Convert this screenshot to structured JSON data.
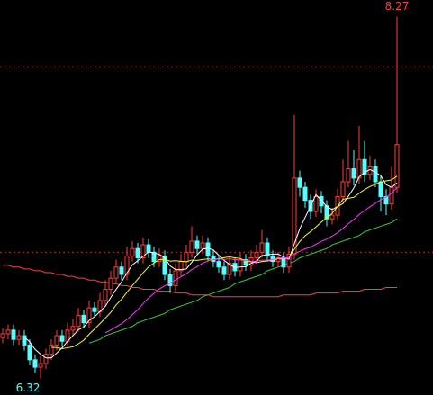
{
  "chart_data": {
    "type": "candlestick",
    "ylim": [
      6.23,
      8.36
    ],
    "ygrid": [
      7,
      8
    ],
    "grid_color": "#c0302a",
    "up_color": "#ff3b3b",
    "down_color": "#54ffff",
    "background": "#000000",
    "open": [
      6.54,
      6.56,
      6.58,
      6.53,
      6.55,
      6.5,
      6.42,
      6.38,
      6.4,
      6.45,
      6.5,
      6.55,
      6.52,
      6.58,
      6.6,
      6.66,
      6.62,
      6.7,
      6.68,
      6.74,
      6.8,
      6.86,
      6.92,
      6.88,
      6.98,
      7.02,
      6.97,
      7.04,
      7.0,
      6.95,
      6.98,
      6.88,
      6.82,
      6.9,
      6.95,
      7.0,
      7.06,
      7.02,
      7.05,
      6.98,
      6.95,
      6.92,
      6.88,
      6.94,
      6.9,
      6.96,
      6.93,
      6.97,
      7.0,
      7.05,
      6.98,
      6.95,
      6.97,
      6.92,
      6.99,
      7.4,
      7.35,
      7.28,
      7.22,
      7.3,
      7.25,
      7.18,
      7.2,
      7.3,
      7.38,
      7.45,
      7.4,
      7.5,
      7.42,
      7.46,
      7.38,
      7.3,
      7.26,
      7.35
    ],
    "high": [
      6.59,
      6.61,
      6.61,
      6.58,
      6.58,
      6.53,
      6.45,
      6.44,
      6.48,
      6.53,
      6.58,
      6.58,
      6.62,
      6.64,
      6.7,
      6.69,
      6.74,
      6.73,
      6.78,
      6.85,
      6.9,
      6.96,
      6.95,
      7.03,
      7.06,
      7.05,
      7.08,
      7.07,
      7.03,
      7.02,
      7.01,
      6.91,
      6.94,
      6.99,
      7.04,
      7.14,
      7.09,
      7.09,
      7.08,
      7.01,
      6.98,
      6.95,
      6.98,
      6.97,
      7.0,
      6.99,
      7.01,
      7.04,
      7.12,
      7.08,
      7.01,
      7.0,
      7.0,
      7.03,
      7.74,
      7.44,
      7.38,
      7.31,
      7.34,
      7.33,
      7.28,
      7.24,
      7.34,
      7.5,
      7.6,
      7.55,
      7.68,
      7.6,
      7.52,
      7.5,
      7.41,
      7.34,
      7.46,
      8.27
    ],
    "low": [
      6.51,
      6.53,
      6.5,
      6.5,
      6.47,
      6.39,
      6.35,
      6.32,
      6.37,
      6.42,
      6.47,
      6.49,
      6.49,
      6.55,
      6.57,
      6.59,
      6.59,
      6.65,
      6.65,
      6.71,
      6.77,
      6.83,
      6.85,
      6.85,
      6.95,
      6.94,
      6.94,
      6.97,
      6.92,
      6.92,
      6.85,
      6.78,
      6.79,
      6.87,
      6.92,
      6.97,
      6.99,
      6.99,
      6.95,
      6.92,
      6.89,
      6.85,
      6.85,
      6.87,
      6.87,
      6.9,
      6.9,
      6.94,
      6.97,
      6.95,
      6.92,
      6.92,
      6.89,
      6.89,
      6.96,
      7.3,
      7.24,
      7.18,
      7.19,
      7.21,
      7.14,
      7.15,
      7.17,
      7.27,
      7.35,
      7.36,
      7.37,
      7.38,
      7.39,
      7.35,
      7.22,
      7.2,
      7.23,
      7.32
    ],
    "close": [
      6.56,
      6.58,
      6.53,
      6.55,
      6.5,
      6.42,
      6.38,
      6.4,
      6.45,
      6.5,
      6.55,
      6.52,
      6.58,
      6.6,
      6.66,
      6.62,
      6.7,
      6.68,
      6.74,
      6.8,
      6.86,
      6.92,
      6.88,
      6.98,
      7.02,
      6.97,
      7.04,
      7.0,
      6.95,
      6.98,
      6.88,
      6.82,
      6.9,
      6.95,
      7.0,
      7.06,
      7.02,
      7.05,
      6.98,
      6.95,
      6.92,
      6.88,
      6.94,
      6.9,
      6.96,
      6.93,
      6.97,
      7.0,
      7.05,
      6.98,
      6.95,
      6.97,
      6.92,
      6.99,
      7.4,
      7.35,
      7.28,
      7.22,
      7.3,
      7.25,
      7.18,
      7.2,
      7.3,
      7.38,
      7.45,
      7.4,
      7.5,
      7.42,
      7.46,
      7.38,
      7.3,
      7.26,
      7.35,
      7.58
    ],
    "averages": [
      {
        "color": "#ffffff",
        "period": 5
      },
      {
        "color": "#ffff00",
        "period": 10
      },
      {
        "color": "#ff33ff",
        "period": 20
      }
    ],
    "lines": [
      {
        "color": "#33cc33",
        "values": [
          null,
          null,
          null,
          null,
          null,
          null,
          null,
          null,
          null,
          null,
          null,
          null,
          null,
          null,
          null,
          null,
          6.51,
          6.52,
          6.53,
          6.55,
          6.56,
          6.57,
          6.58,
          6.59,
          6.6,
          6.62,
          6.63,
          6.64,
          6.65,
          6.66,
          6.67,
          6.69,
          6.7,
          6.71,
          6.72,
          6.73,
          6.74,
          6.76,
          6.77,
          6.78,
          6.79,
          6.8,
          6.81,
          6.83,
          6.84,
          6.85,
          6.86,
          6.87,
          6.88,
          6.9,
          6.91,
          6.92,
          6.93,
          6.94,
          6.95,
          6.97,
          6.98,
          6.99,
          7.0,
          7.01,
          7.02,
          7.04,
          7.05,
          7.06,
          7.07,
          7.08,
          7.09,
          7.11,
          7.12,
          7.13,
          7.14,
          7.15,
          7.16,
          7.18
        ]
      },
      {
        "color": "#ff4040",
        "values": [
          6.93,
          6.93,
          6.92,
          6.92,
          6.91,
          6.91,
          6.9,
          6.9,
          6.89,
          6.89,
          6.88,
          6.88,
          6.87,
          6.87,
          6.86,
          6.86,
          6.85,
          6.85,
          6.84,
          6.84,
          6.83,
          6.83,
          6.82,
          6.82,
          6.81,
          6.81,
          6.8,
          6.8,
          6.8,
          6.79,
          6.79,
          6.79,
          6.78,
          6.78,
          6.78,
          6.77,
          6.77,
          6.77,
          6.77,
          6.76,
          6.76,
          6.76,
          6.76,
          6.76,
          6.76,
          6.76,
          6.76,
          6.76,
          6.76,
          6.76,
          6.76,
          6.76,
          6.77,
          6.77,
          6.77,
          6.77,
          6.77,
          6.77,
          6.78,
          6.78,
          6.78,
          6.78,
          6.78,
          6.79,
          6.79,
          6.79,
          6.79,
          6.8,
          6.8,
          6.8,
          6.8,
          6.81,
          6.81,
          6.81
        ]
      }
    ]
  }
}
